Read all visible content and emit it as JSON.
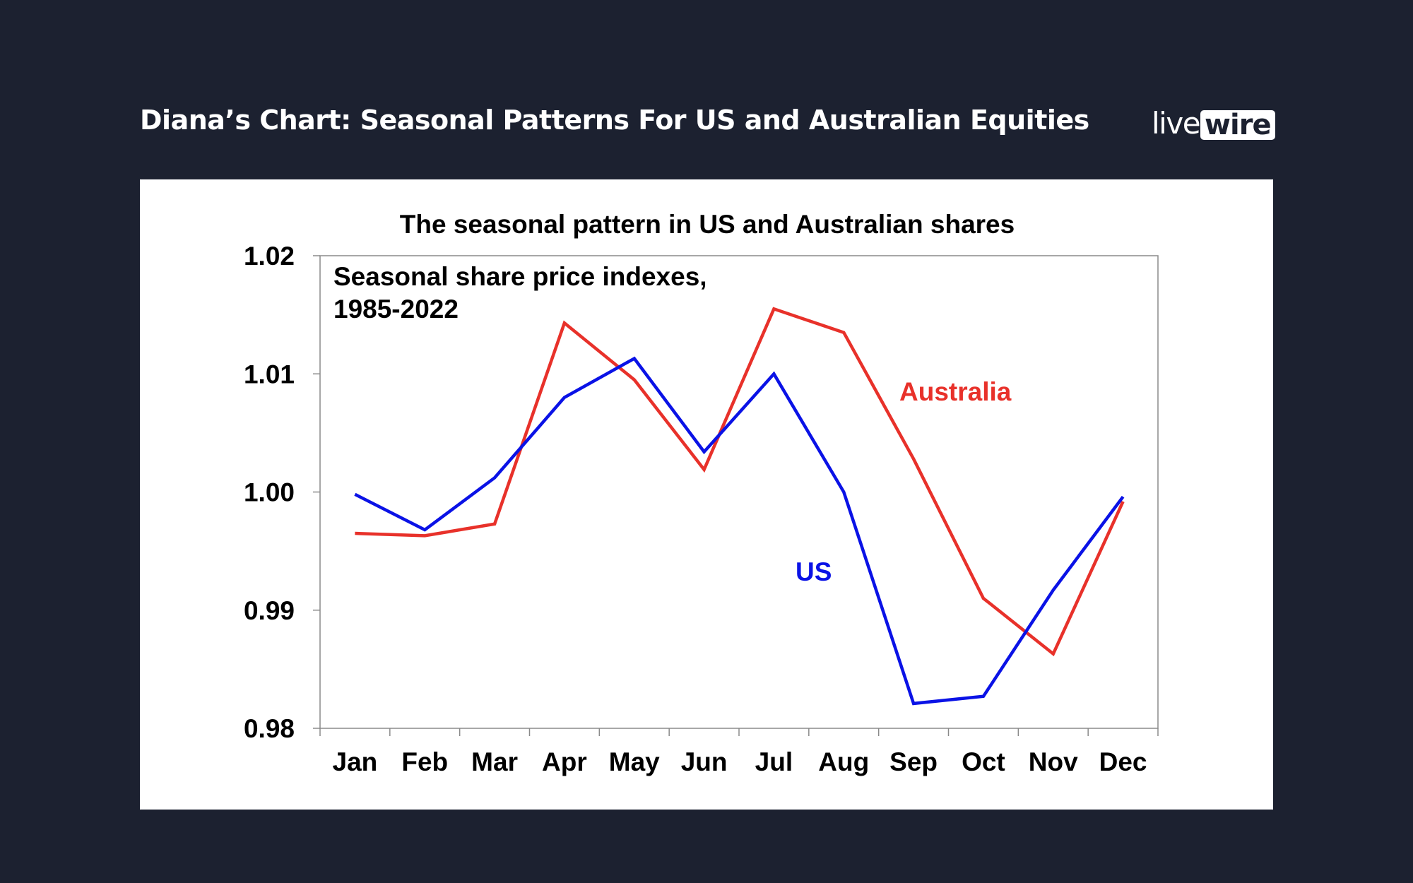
{
  "header": {
    "title": "Diana’s Chart: Seasonal Patterns For US and Australian Equities",
    "logo_part1": "live",
    "logo_part2": "wire"
  },
  "colors": {
    "background": "#1c2130",
    "australia": "#e8312a",
    "us": "#0a12e6"
  },
  "chart_data": {
    "type": "line",
    "title": "The seasonal pattern in US and Australian shares",
    "annotation_line1": "Seasonal share price indexes,",
    "annotation_line2": "1985-2022",
    "categories": [
      "Jan",
      "Feb",
      "Mar",
      "Apr",
      "May",
      "Jun",
      "Jul",
      "Aug",
      "Sep",
      "Oct",
      "Nov",
      "Dec"
    ],
    "ylim": [
      0.98,
      1.02
    ],
    "yticks": [
      1.02,
      1.01,
      1.0,
      0.99,
      0.98
    ],
    "ytick_labels": [
      "1.02",
      "1.01",
      "1.00",
      "0.99",
      "0.98"
    ],
    "grid": false,
    "series": [
      {
        "name": "Australia",
        "color": "#e8312a",
        "values": [
          0.9965,
          0.9963,
          0.9973,
          1.0143,
          1.0095,
          1.0019,
          1.0155,
          1.0135,
          1.0028,
          0.991,
          0.9863,
          0.9992
        ]
      },
      {
        "name": "US",
        "color": "#0a12e6",
        "values": [
          0.9998,
          0.9968,
          1.0012,
          1.008,
          1.0113,
          1.0034,
          1.01,
          1.0,
          0.9821,
          0.9827,
          0.9917,
          0.9996
        ]
      }
    ]
  }
}
